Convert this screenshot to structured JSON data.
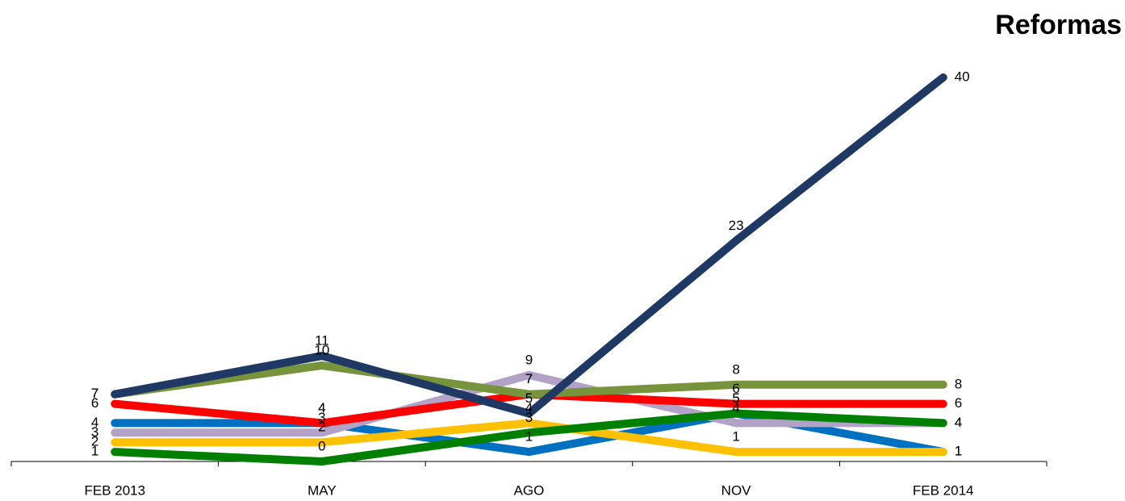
{
  "chart_data": {
    "type": "line",
    "title": "Reformas",
    "categories": [
      "FEB 2013",
      "MAY",
      "AGO",
      "NOV",
      "FEB 2014"
    ],
    "ylim": [
      0,
      40
    ],
    "series": [
      {
        "color": "#0070c0",
        "values": [
          4,
          4,
          1,
          5,
          1
        ]
      },
      {
        "color": "#ffc000",
        "values": [
          2,
          2,
          4,
          1,
          1
        ]
      },
      {
        "color": "#b3a2c7",
        "values": [
          3,
          3,
          9,
          4,
          4
        ]
      },
      {
        "color": "#ff0000",
        "values": [
          6,
          4,
          7,
          6,
          6
        ]
      },
      {
        "color": "#008000",
        "values": [
          1,
          0,
          3,
          5,
          4
        ]
      },
      {
        "color": "#77933c",
        "values": [
          7,
          10,
          7,
          8,
          8
        ]
      },
      {
        "color": "#1f3864",
        "values": [
          7,
          11,
          5,
          23,
          40
        ]
      }
    ]
  }
}
